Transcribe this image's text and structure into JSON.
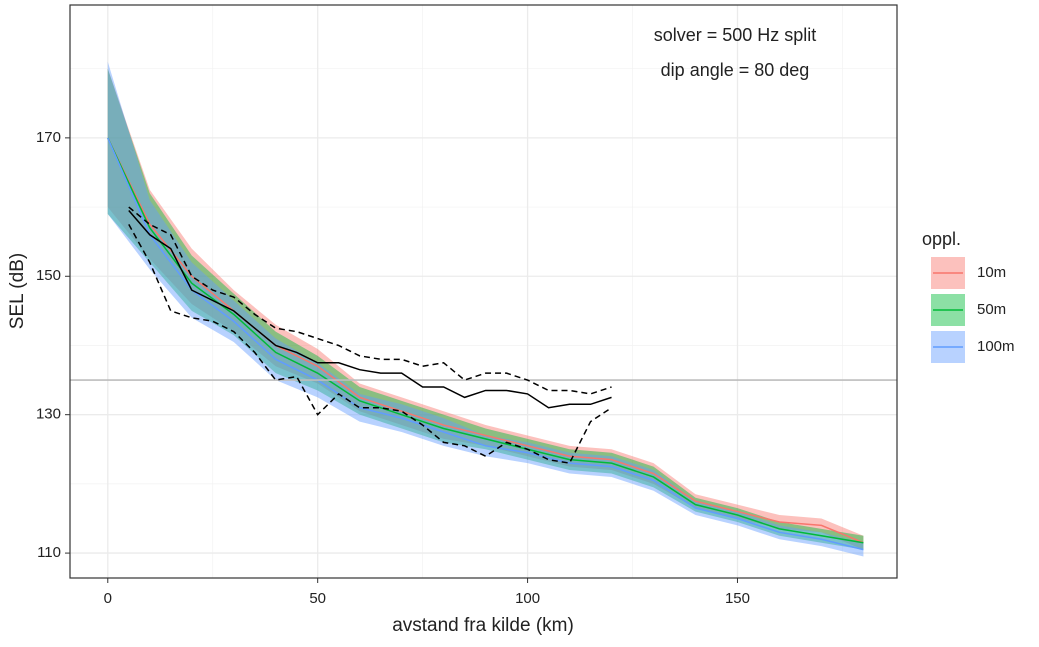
{
  "chart_data": {
    "type": "ribbon-line",
    "xlabel": "avstand fra kilde (km)",
    "ylabel": "SEL (dB)",
    "annotations": [
      "solver = 500 Hz split",
      "dip angle = 80 deg"
    ],
    "legend_title": "oppl.",
    "xlim": [
      -9,
      188
    ],
    "ylim": [
      106.4,
      189.2
    ],
    "xticks": [
      0,
      50,
      100,
      150
    ],
    "yticks": [
      110,
      130,
      150,
      170
    ],
    "grid": true,
    "hline": 135,
    "x": [
      0,
      10,
      20,
      30,
      40,
      50,
      60,
      70,
      80,
      90,
      100,
      110,
      120,
      130,
      140,
      150,
      160,
      170,
      180
    ],
    "series": [
      {
        "name": "10m",
        "color": "#F8766D",
        "values": [
          170,
          157.5,
          150,
          145,
          140,
          137,
          132.5,
          130.5,
          128.5,
          127,
          125.5,
          124,
          123.5,
          121.5,
          117.5,
          116,
          114.5,
          114,
          111.5
        ],
        "lower": [
          160,
          152.5,
          146,
          142,
          137,
          134.5,
          130.5,
          128.5,
          126.5,
          125.5,
          124,
          122.5,
          122,
          120,
          116.5,
          115,
          113.5,
          113,
          110.5
        ],
        "upper": [
          180,
          162.5,
          154,
          148,
          143,
          139.5,
          134.5,
          132.5,
          130.5,
          128.5,
          127,
          125.5,
          125,
          123,
          118.5,
          117,
          115.5,
          115,
          112.5
        ]
      },
      {
        "name": "50m",
        "color": "#00BA38",
        "values": [
          170,
          157,
          149,
          144.5,
          139,
          136,
          132,
          130,
          128,
          126.5,
          125,
          123.5,
          123,
          121,
          117,
          115.5,
          113.5,
          112.5,
          111.5
        ],
        "lower": [
          159,
          152,
          145,
          141.5,
          136,
          133.5,
          130,
          128,
          126,
          125,
          123.5,
          122,
          121.5,
          119.5,
          116,
          114.5,
          112.5,
          111.5,
          110.5
        ],
        "upper": [
          180,
          162,
          153,
          147.5,
          142,
          138.5,
          134,
          132,
          130,
          128,
          126.5,
          125,
          124.5,
          122.5,
          118,
          116.5,
          114.5,
          113.5,
          112.5
        ]
      },
      {
        "name": "100m",
        "color": "#619CFF",
        "values": [
          170,
          156,
          148,
          143.5,
          138,
          135,
          131,
          129.5,
          127.5,
          125.5,
          124.5,
          123,
          122.5,
          120.5,
          116.5,
          115,
          113,
          112,
          110.5
        ],
        "lower": [
          159,
          151,
          144,
          140.5,
          135,
          132.5,
          129,
          127.5,
          125.5,
          124,
          123,
          121.5,
          121,
          119,
          115.5,
          114,
          112,
          111,
          109.5
        ],
        "upper": [
          181,
          161,
          152,
          146.5,
          141,
          137.5,
          133,
          131.5,
          129.5,
          127,
          126,
          124.5,
          124,
          122,
          117.5,
          116,
          114,
          113,
          111.5
        ]
      }
    ],
    "lines": [
      {
        "color": "#000000",
        "dashed": false,
        "x": [
          5,
          10,
          15,
          20,
          25,
          30,
          35,
          40,
          45,
          50,
          55,
          60,
          65,
          70,
          75,
          80,
          85,
          90,
          95,
          100,
          105,
          110,
          115,
          120
        ],
        "values": [
          159.5,
          156,
          154,
          148,
          146.5,
          145,
          142.5,
          140,
          139,
          137.5,
          137.5,
          136.5,
          136,
          136,
          134,
          134,
          132.5,
          133.5,
          133.5,
          133,
          131,
          131.5,
          131.5,
          132.5
        ]
      },
      {
        "color": "#000000",
        "dashed": true,
        "x": [
          5,
          10,
          15,
          20,
          25,
          30,
          35,
          40,
          45,
          50,
          55,
          60,
          65,
          70,
          75,
          80,
          85,
          90,
          95,
          100,
          105,
          110,
          115,
          120
        ],
        "values": [
          160,
          157.5,
          156,
          150,
          148,
          147,
          144.5,
          142.5,
          142,
          141,
          140,
          138.5,
          138,
          138,
          137,
          137.5,
          135,
          136,
          136,
          135,
          133.5,
          133.5,
          133,
          134
        ]
      },
      {
        "color": "#000000",
        "dashed": true,
        "x": [
          5,
          10,
          15,
          20,
          25,
          30,
          35,
          40,
          45,
          50,
          55,
          60,
          65,
          70,
          75,
          80,
          85,
          90,
          95,
          100,
          105,
          110,
          115,
          120
        ],
        "values": [
          157.5,
          152,
          145,
          144,
          143.5,
          142,
          139,
          135,
          135.5,
          130,
          133,
          131,
          131,
          130.5,
          128.5,
          126,
          125.5,
          124,
          126,
          125,
          123.5,
          123,
          129,
          131
        ]
      }
    ]
  }
}
